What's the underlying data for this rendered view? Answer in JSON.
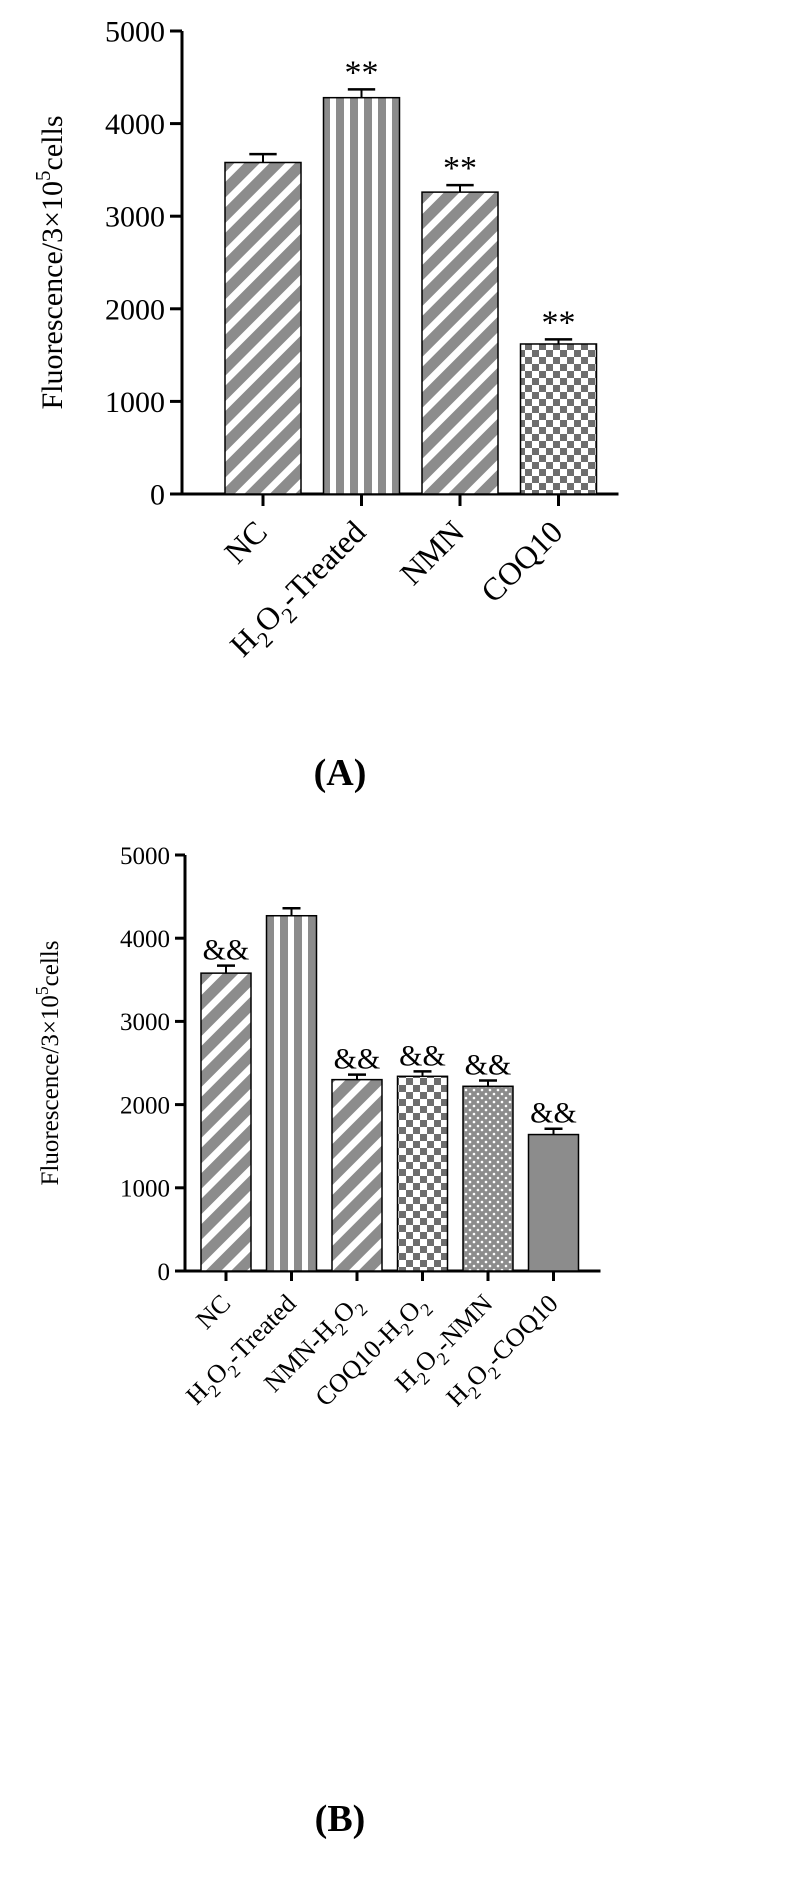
{
  "colors": {
    "bar_gray": "#8c8c8c",
    "axis": "#000000",
    "background": "#ffffff"
  },
  "chart_data": [
    {
      "type": "bar",
      "panel_label": "(A)",
      "ylabel": "Fluorescence/3×10⁵cells",
      "ylabel_parts": {
        "pre": "Fluorescence/3×10",
        "sup": "5",
        "post": "cells"
      },
      "ylim": [
        0,
        5000
      ],
      "yticks": [
        0,
        1000,
        2000,
        3000,
        4000,
        5000
      ],
      "ytick_labels": [
        "0",
        "1000",
        "2000",
        "3000",
        "4000",
        "5000"
      ],
      "categories": [
        "NC",
        "H2O2-Treated",
        "NMN",
        "COQ10"
      ],
      "category_labels": [
        [
          {
            "t": "NC"
          }
        ],
        [
          {
            "t": "H"
          },
          {
            "t": "2",
            "s": 1
          },
          {
            "t": "O"
          },
          {
            "t": "2",
            "s": 1
          },
          {
            "t": "-Treated"
          }
        ],
        [
          {
            "t": "NMN"
          }
        ],
        [
          {
            "t": "COQ10"
          }
        ]
      ],
      "values": [
        3580,
        4280,
        3260,
        1620
      ],
      "errors": [
        90,
        90,
        75,
        50
      ],
      "annotations": [
        "",
        "**",
        "**",
        "**"
      ],
      "patterns": [
        "diagonal",
        "vertical",
        "diagonal",
        "checker"
      ],
      "grid": false
    },
    {
      "type": "bar",
      "panel_label": "(B)",
      "ylabel": "Fluorescence/3×10⁵cells",
      "ylabel_parts": {
        "pre": "Fluorescence/3×10",
        "sup": "5",
        "post": "cells"
      },
      "ylim": [
        0,
        5000
      ],
      "yticks": [
        0,
        1000,
        2000,
        3000,
        4000,
        5000
      ],
      "ytick_labels": [
        "0",
        "1000",
        "2000",
        "3000",
        "4000",
        "5000"
      ],
      "categories": [
        "NC",
        "H2O2-Treated",
        "NMN-H2O2",
        "COQ10-H2O2",
        "H2O2-NMN",
        "H2O2-COQ10"
      ],
      "category_labels": [
        [
          {
            "t": "NC"
          }
        ],
        [
          {
            "t": "H"
          },
          {
            "t": "2",
            "s": 1
          },
          {
            "t": "O"
          },
          {
            "t": "2",
            "s": 1
          },
          {
            "t": "-Treated"
          }
        ],
        [
          {
            "t": "NMN-H"
          },
          {
            "t": "2",
            "s": 1
          },
          {
            "t": "O"
          },
          {
            "t": "2",
            "s": 1
          }
        ],
        [
          {
            "t": "COQ10-H"
          },
          {
            "t": "2",
            "s": 1
          },
          {
            "t": "O"
          },
          {
            "t": "2",
            "s": 1
          }
        ],
        [
          {
            "t": "H"
          },
          {
            "t": "2",
            "s": 1
          },
          {
            "t": "O"
          },
          {
            "t": "2",
            "s": 1
          },
          {
            "t": "-NMN"
          }
        ],
        [
          {
            "t": "H"
          },
          {
            "t": "2",
            "s": 1
          },
          {
            "t": "O"
          },
          {
            "t": "2",
            "s": 1
          },
          {
            "t": "-COQ10"
          }
        ]
      ],
      "values": [
        3580,
        4270,
        2300,
        2340,
        2220,
        1640
      ],
      "errors": [
        90,
        90,
        60,
        60,
        70,
        70
      ],
      "annotations": [
        "&&",
        "",
        "&&",
        "&&",
        "&&",
        "&&"
      ],
      "patterns": [
        "diagonal",
        "vertical",
        "diagonal",
        "checker",
        "dots",
        "solid"
      ],
      "grid": false
    }
  ]
}
